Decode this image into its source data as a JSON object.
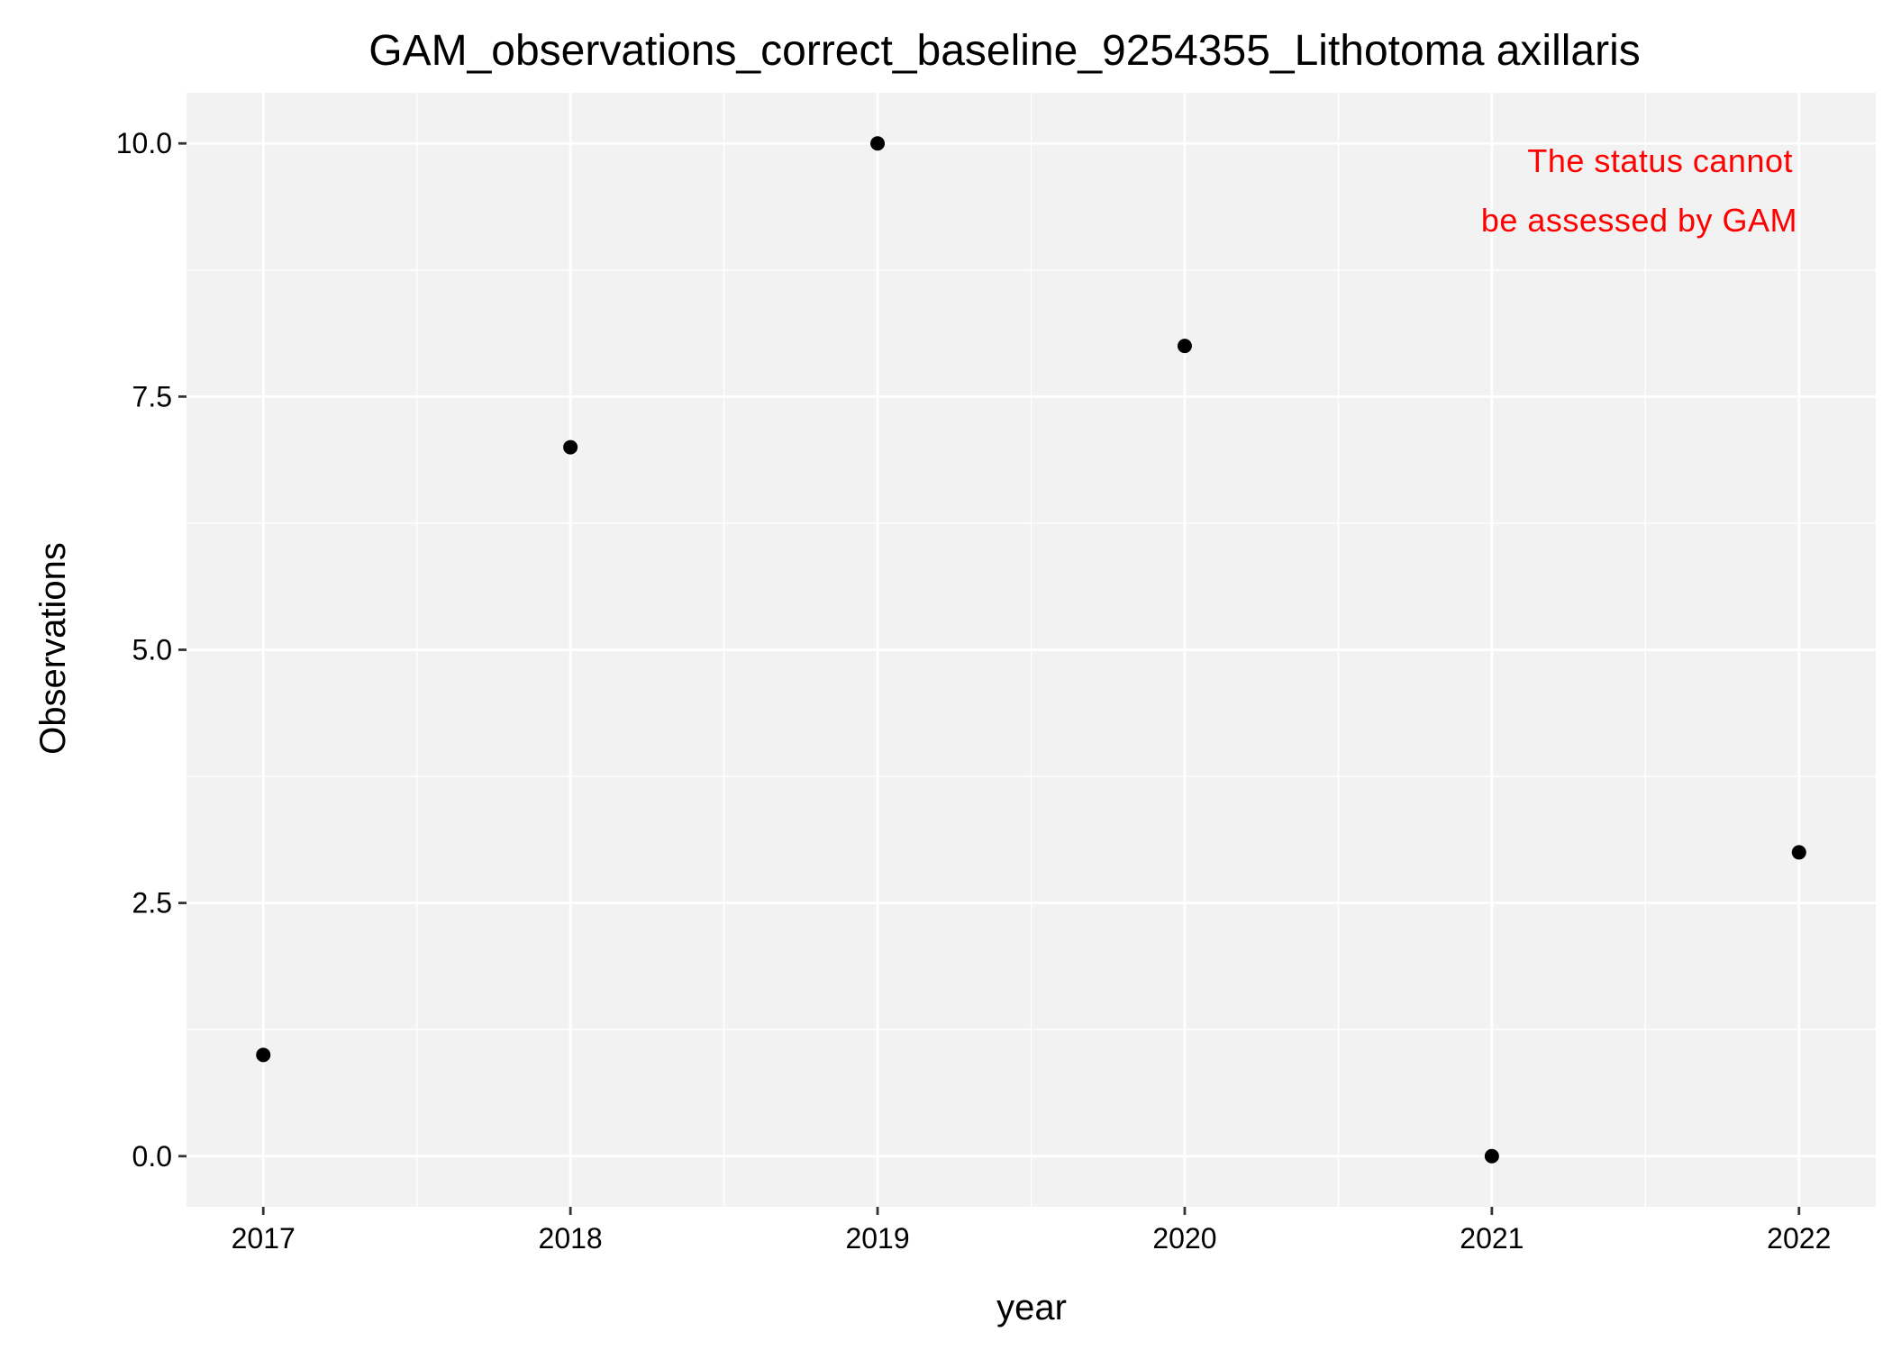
{
  "chart_data": {
    "type": "scatter",
    "title": "GAM_observations_correct_baseline_9254355_Lithotoma axillaris",
    "xlabel": "year",
    "ylabel": "Observations",
    "x": [
      2017,
      2018,
      2019,
      2020,
      2021,
      2022
    ],
    "y": [
      1,
      7,
      10,
      8,
      0,
      3
    ],
    "x_ticks": [
      "2017",
      "2018",
      "2019",
      "2020",
      "2021",
      "2022"
    ],
    "y_ticks": [
      "0.0",
      "2.5",
      "5.0",
      "7.5",
      "10.0"
    ],
    "y_tick_values": [
      0,
      2.5,
      5,
      7.5,
      10
    ],
    "xlim": [
      2016.75,
      2022.25
    ],
    "ylim": [
      -0.5,
      10.5
    ],
    "grid": true,
    "annotation": [
      "The status cannot",
      "be assessed by GAM"
    ],
    "colors": {
      "panel_background": "#f2f2f2",
      "grid": "#ffffff",
      "point": "#000000",
      "annotation": "#ff0000"
    }
  }
}
